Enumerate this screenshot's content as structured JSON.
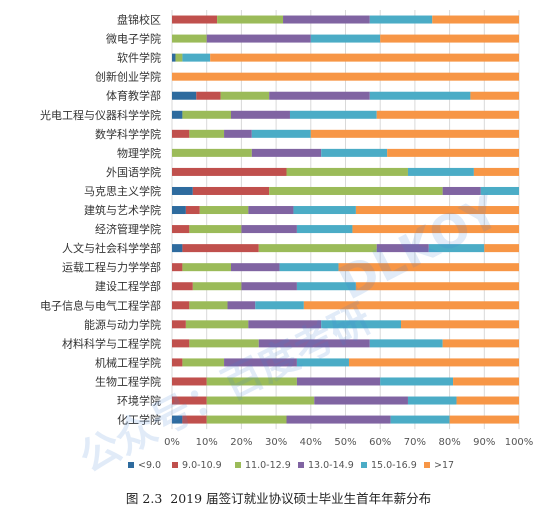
{
  "chart_data": {
    "type": "bar",
    "orientation": "horizontal",
    "stacked": "percent",
    "categories": [
      "盘锦校区",
      "微电子学院",
      "软件学院",
      "创新创业学院",
      "体育教学部",
      "光电工程与仪器科学学院",
      "数学科学学院",
      "物理学院",
      "外国语学院",
      "马克思主义学院",
      "建筑与艺术学院",
      "经济管理学院",
      "人文与社会科学学部",
      "运载工程与力学学部",
      "建设工程学部",
      "电子信息与电气工程学部",
      "能源与动力学院",
      "材料科学与工程学院",
      "机械工程学院",
      "生物工程学院",
      "环境学院",
      "化工学院"
    ],
    "series": [
      {
        "name": "<9.0",
        "color": "#2e6b9e",
        "values": [
          0,
          0,
          1,
          0,
          7,
          3,
          0,
          0,
          0,
          6,
          4,
          0,
          3,
          0,
          0,
          0,
          0,
          0,
          0,
          0,
          0,
          3
        ]
      },
      {
        "name": "9.0-10.9",
        "color": "#c0504d",
        "values": [
          13,
          0,
          0,
          0,
          7,
          0,
          5,
          0,
          33,
          22,
          4,
          5,
          22,
          3,
          6,
          5,
          4,
          5,
          3,
          10,
          10,
          7
        ]
      },
      {
        "name": "11.0-12.9",
        "color": "#9bbb59",
        "values": [
          19,
          10,
          2,
          0,
          14,
          14,
          10,
          23,
          35,
          50,
          14,
          15,
          34,
          14,
          14,
          11,
          18,
          20,
          12,
          26,
          31,
          23
        ]
      },
      {
        "name": "13.0-14.9",
        "color": "#8064a2",
        "values": [
          25,
          30,
          0,
          0,
          29,
          17,
          8,
          20,
          0,
          11,
          13,
          16,
          15,
          14,
          16,
          8,
          21,
          32,
          21,
          24,
          27,
          30
        ]
      },
      {
        "name": "15.0-16.9",
        "color": "#4bacc6",
        "values": [
          18,
          20,
          8,
          0,
          29,
          25,
          17,
          19,
          19,
          11,
          18,
          16,
          16,
          17,
          17,
          14,
          23,
          21,
          15,
          21,
          14,
          17
        ]
      },
      {
        "name": ">17",
        "color": "#f79646",
        "values": [
          25,
          40,
          89,
          100,
          14,
          41,
          60,
          38,
          13,
          0,
          47,
          48,
          10,
          52,
          47,
          62,
          34,
          22,
          49,
          19,
          18,
          20
        ]
      }
    ],
    "xlim": [
      0,
      100
    ],
    "x_ticks": [
      "0%",
      "10%",
      "20%",
      "30%",
      "40%",
      "50%",
      "60%",
      "70%",
      "80%",
      "90%",
      "100%"
    ],
    "legend_position": "bottom",
    "grid": true
  },
  "caption": {
    "figure_number": "图 2.3",
    "title": "2019 届签订就业协议硕士毕业生首年年薪分布"
  },
  "watermark": {
    "text_cn": "公众号：百度考研",
    "text_en": "DLKOY"
  }
}
